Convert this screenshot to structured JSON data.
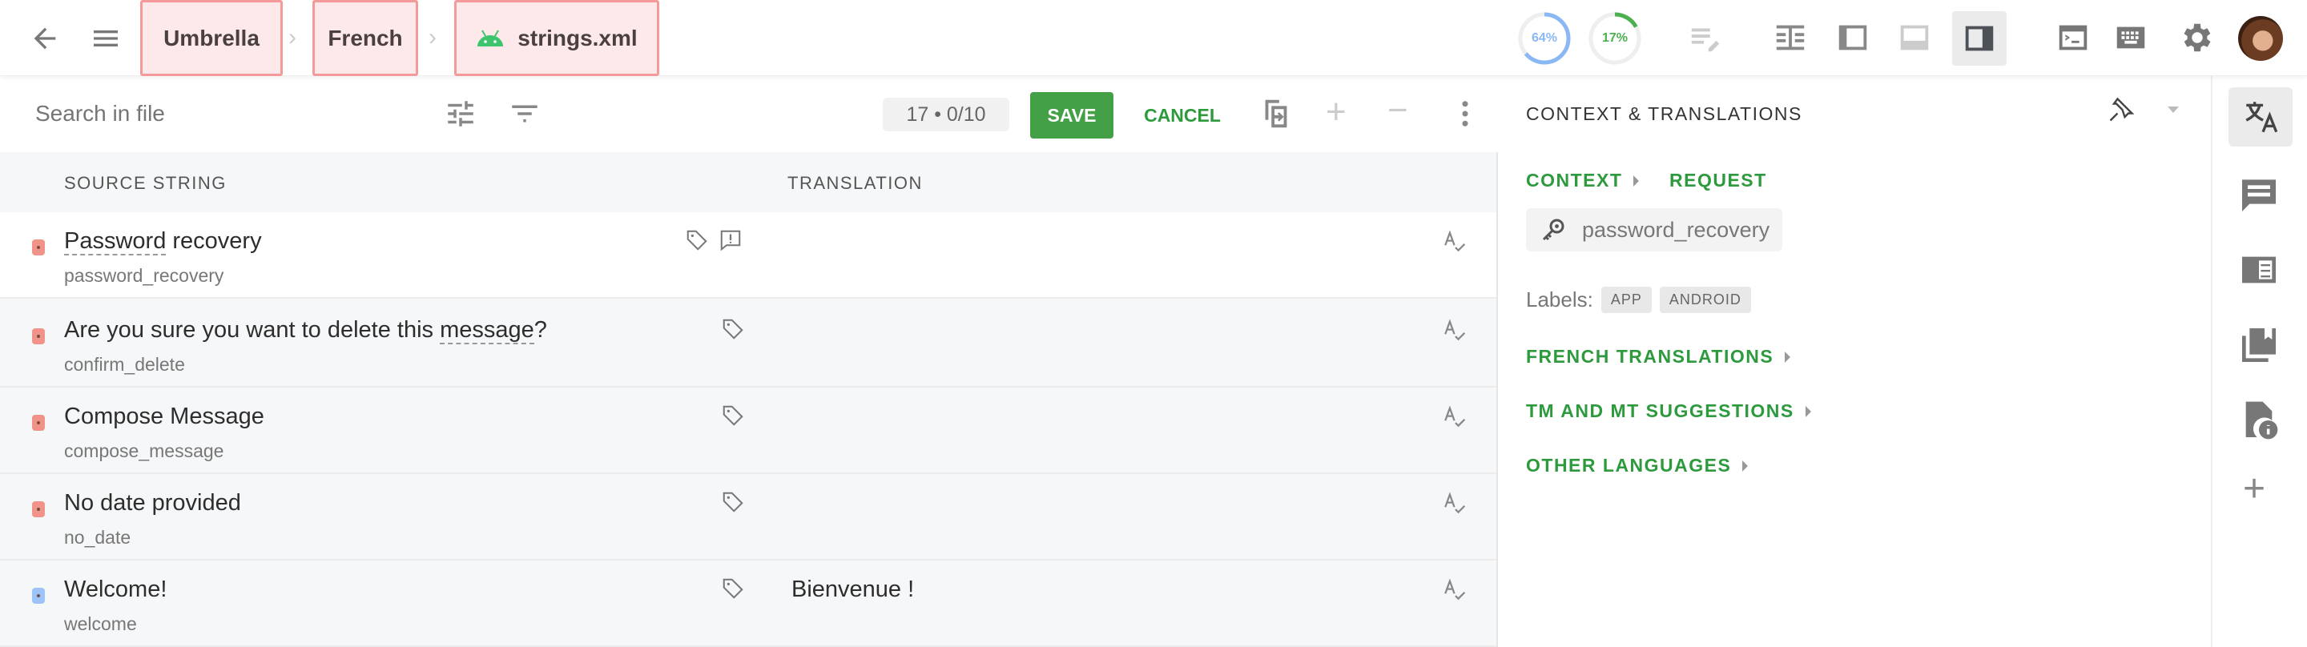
{
  "topbar": {
    "breadcrumbs": [
      "Umbrella",
      "French",
      "strings.xml"
    ],
    "progress": [
      {
        "label": "64%",
        "value": 64,
        "color": "#8ab8f5"
      },
      {
        "label": "17%",
        "value": 17,
        "color": "#4caf50"
      }
    ],
    "icons": [
      "back-arrow-icon",
      "menu-icon",
      "android-icon",
      "edit-notes-icon",
      "layout-table-icon",
      "layout-left-panel-icon",
      "layout-bottom-panel-icon",
      "layout-right-panel-icon",
      "terminal-icon",
      "keyboard-icon",
      "gear-icon",
      "avatar"
    ]
  },
  "toolbar": {
    "search_placeholder": "Search in file",
    "counter": "17 • 0/10",
    "save_label": "SAVE",
    "cancel_label": "CANCEL"
  },
  "table": {
    "headers": {
      "source": "SOURCE STRING",
      "translation": "TRANSLATION"
    },
    "rows": [
      {
        "source": "Password recovery",
        "key": "password_recovery",
        "translation": "",
        "status_color": "#f0948a",
        "comment": true
      },
      {
        "source": "Are you sure you want to delete this message?",
        "key": "confirm_delete",
        "translation": "",
        "status_color": "#f0948a"
      },
      {
        "source": "Compose Message",
        "key": "compose_message",
        "translation": "",
        "status_color": "#f0948a"
      },
      {
        "source": "No date provided",
        "key": "no_date",
        "translation": "",
        "status_color": "#f0948a"
      },
      {
        "source": "Welcome!",
        "key": "welcome",
        "translation": "Bienvenue !",
        "status_color": "#9cc4f8"
      }
    ]
  },
  "context_panel": {
    "title": "CONTEXT & TRANSLATIONS",
    "context_label": "CONTEXT",
    "request_label": "REQUEST",
    "key": "password_recovery",
    "labels_prefix": "Labels:",
    "labels": [
      "APP",
      "ANDROID"
    ],
    "sections": [
      "FRENCH TRANSLATIONS",
      "TM AND MT SUGGESTIONS",
      "OTHER LANGUAGES"
    ]
  },
  "colors": {
    "accent": "#2e9a3e",
    "save_bg": "#43a047",
    "breadcrumb_highlight": "#f59a9a"
  }
}
